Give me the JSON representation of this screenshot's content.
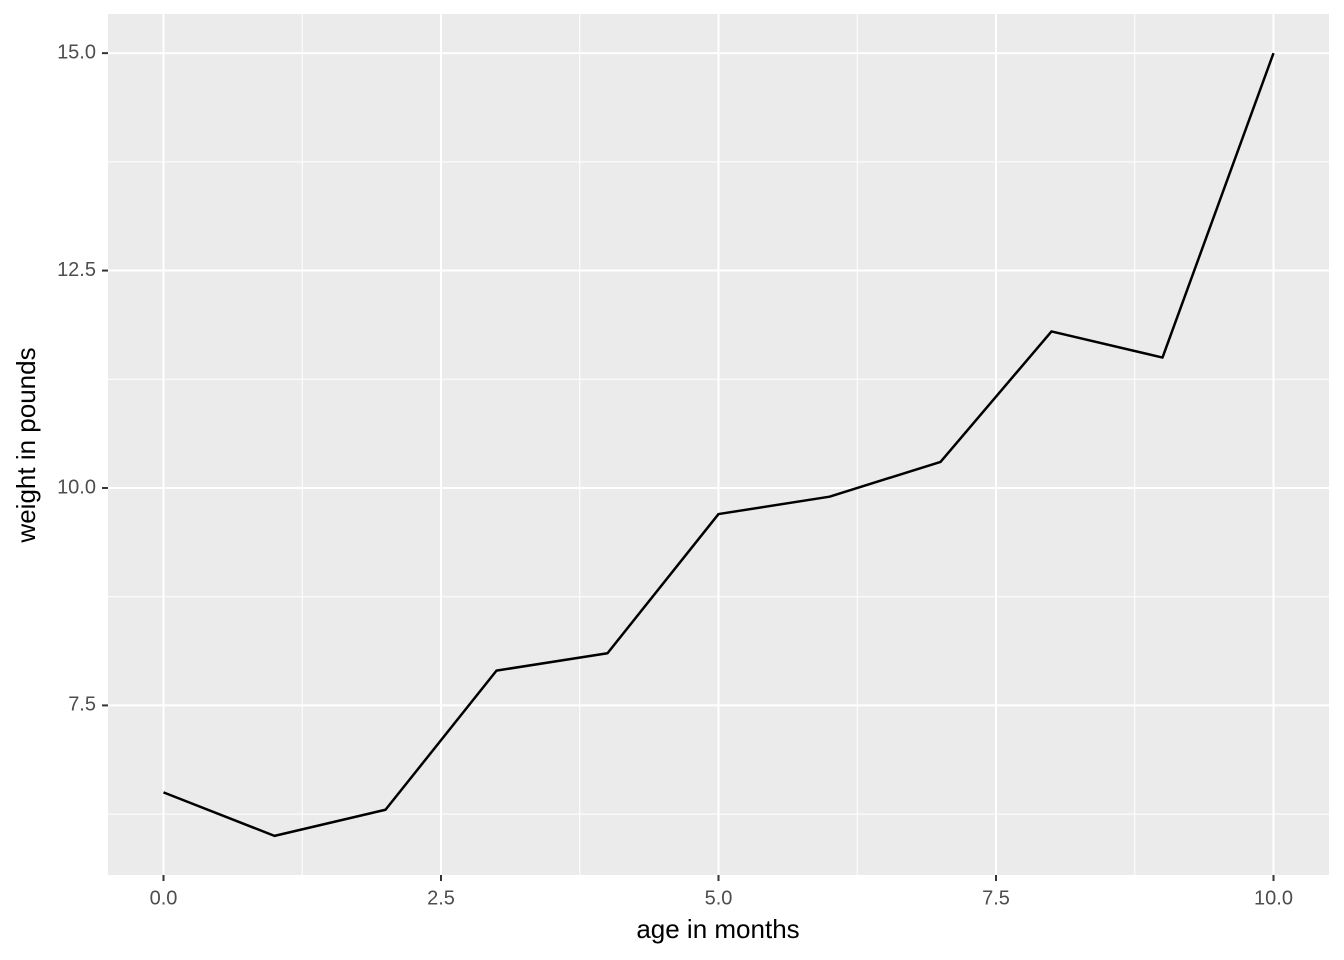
{
  "chart_data": {
    "type": "line",
    "x_label": "age in months",
    "y_label": "weight in pounds",
    "x": [
      0,
      1,
      2,
      3,
      4,
      5,
      6,
      7,
      8,
      9,
      10
    ],
    "series": [
      {
        "color": "#000000",
        "values": [
          6.5,
          6.0,
          6.3,
          7.9,
          8.1,
          9.7,
          9.9,
          10.3,
          11.8,
          11.5,
          15.0
        ]
      }
    ],
    "xlim": [
      -0.5,
      10.5
    ],
    "xticks": [
      {
        "value": 0,
        "label": "0.0"
      },
      2.5,
      {
        "value": 5,
        "label": "5.0"
      },
      7.5,
      {
        "value": 10,
        "label": "10.0"
      }
    ],
    "ylim": [
      5.55,
      15.45
    ],
    "yticks": [
      7.5,
      {
        "value": 10,
        "label": "10.0"
      },
      12.5,
      {
        "value": 15,
        "label": "15.0"
      }
    ],
    "grid": true,
    "panel_color": "#ebebeb"
  }
}
